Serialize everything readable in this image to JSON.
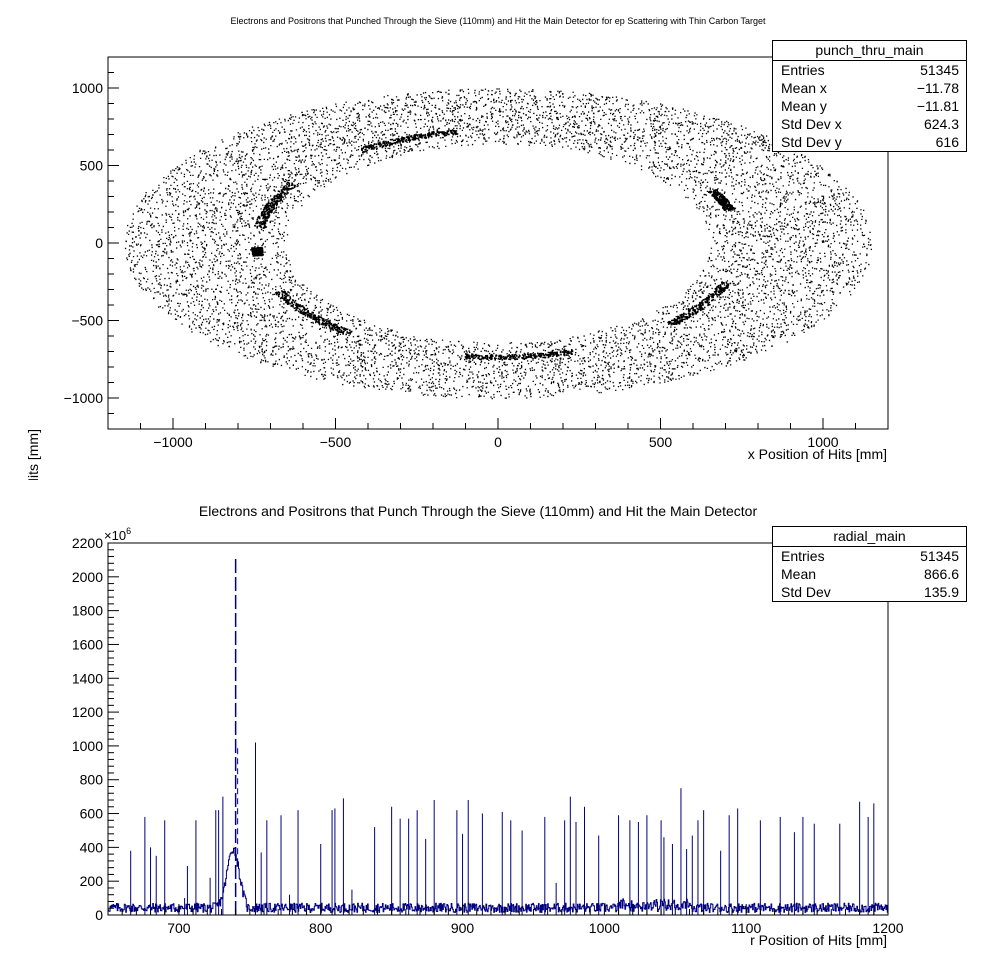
{
  "chart_data": [
    {
      "type": "scatter",
      "title": "Electrons and Positrons that Punched Through the Sieve (110mm) and Hit the Main Detector for ep Scattering with Thin Carbon Target",
      "xlabel": "x Position of Hits [mm]",
      "ylabel": "y Position of Hits [mm]",
      "xlim": [
        -1200,
        1200
      ],
      "ylim": [
        -1200,
        1200
      ],
      "xticks": [
        "−1000",
        "−500",
        "0",
        "500",
        "1000"
      ],
      "yticks": [
        "−1000",
        "−500",
        "0",
        "500",
        "1000"
      ],
      "distribution": {
        "center": [
          0,
          0
        ],
        "inner_hole_radii": [
          650,
          640
        ],
        "outer_radii": [
          1150,
          1000
        ]
      },
      "stats": {
        "name": "punch_thru_main",
        "rows": [
          {
            "label": "Entries",
            "value": "51345"
          },
          {
            "label": "Mean x",
            "value": "−11.78"
          },
          {
            "label": "Mean y",
            "value": "−11.81"
          },
          {
            "label": "Std Dev x",
            "value": "624.3"
          },
          {
            "label": "Std Dev y",
            "value": "616"
          }
        ]
      },
      "colors": {
        "points": "#000000"
      }
    },
    {
      "type": "bar",
      "title": "Electrons and Positrons that Punch Through the Sieve (110mm) and Hit the Main Detector",
      "xlabel": "r Position of Hits [mm]",
      "ylabel": "",
      "xlim": [
        650,
        1200
      ],
      "ylim": [
        0,
        2200
      ],
      "y_multiplier": "×10",
      "y_multiplier_exp": "6",
      "xticks": [
        "700",
        "800",
        "900",
        "1000",
        "1100",
        "1200"
      ],
      "yticks": [
        "0",
        "200",
        "400",
        "600",
        "800",
        "1000",
        "1200",
        "1400",
        "1600",
        "1800",
        "2000",
        "2200"
      ],
      "peak": {
        "r": 740,
        "value": 2110
      },
      "spikes": [
        [
          666,
          380
        ],
        [
          676,
          580
        ],
        [
          680,
          400
        ],
        [
          684,
          350
        ],
        [
          690,
          560
        ],
        [
          704,
          100
        ],
        [
          706,
          290
        ],
        [
          712,
          560
        ],
        [
          722,
          220
        ],
        [
          726,
          620
        ],
        [
          728,
          620
        ],
        [
          731,
          700
        ],
        [
          754,
          1020
        ],
        [
          758,
          370
        ],
        [
          762,
          560
        ],
        [
          772,
          590
        ],
        [
          778,
          120
        ],
        [
          784,
          620
        ],
        [
          800,
          420
        ],
        [
          808,
          620
        ],
        [
          810,
          630
        ],
        [
          816,
          690
        ],
        [
          822,
          150
        ],
        [
          838,
          520
        ],
        [
          850,
          640
        ],
        [
          856,
          570
        ],
        [
          862,
          570
        ],
        [
          868,
          620
        ],
        [
          874,
          450
        ],
        [
          880,
          680
        ],
        [
          896,
          620
        ],
        [
          900,
          480
        ],
        [
          904,
          680
        ],
        [
          914,
          600
        ],
        [
          928,
          610
        ],
        [
          934,
          560
        ],
        [
          942,
          500
        ],
        [
          958,
          580
        ],
        [
          966,
          190
        ],
        [
          972,
          560
        ],
        [
          976,
          700
        ],
        [
          980,
          550
        ],
        [
          986,
          640
        ],
        [
          996,
          470
        ],
        [
          1010,
          590
        ],
        [
          1018,
          560
        ],
        [
          1024,
          550
        ],
        [
          1030,
          590
        ],
        [
          1040,
          560
        ],
        [
          1042,
          460
        ],
        [
          1048,
          420
        ],
        [
          1054,
          750
        ],
        [
          1058,
          390
        ],
        [
          1062,
          470
        ],
        [
          1066,
          560
        ],
        [
          1070,
          620
        ],
        [
          1082,
          380
        ],
        [
          1088,
          590
        ],
        [
          1094,
          630
        ],
        [
          1110,
          560
        ],
        [
          1124,
          580
        ],
        [
          1134,
          490
        ],
        [
          1140,
          580
        ],
        [
          1148,
          540
        ],
        [
          1166,
          540
        ],
        [
          1180,
          670
        ],
        [
          1186,
          580
        ],
        [
          1190,
          660
        ]
      ],
      "stats": {
        "name": "radial_main",
        "rows": [
          {
            "label": "Entries",
            "value": "51345"
          },
          {
            "label": "Mean",
            "value": "866.6"
          },
          {
            "label": "Std Dev",
            "value": "135.9"
          }
        ]
      },
      "colors": {
        "line": "#000080"
      }
    }
  ]
}
